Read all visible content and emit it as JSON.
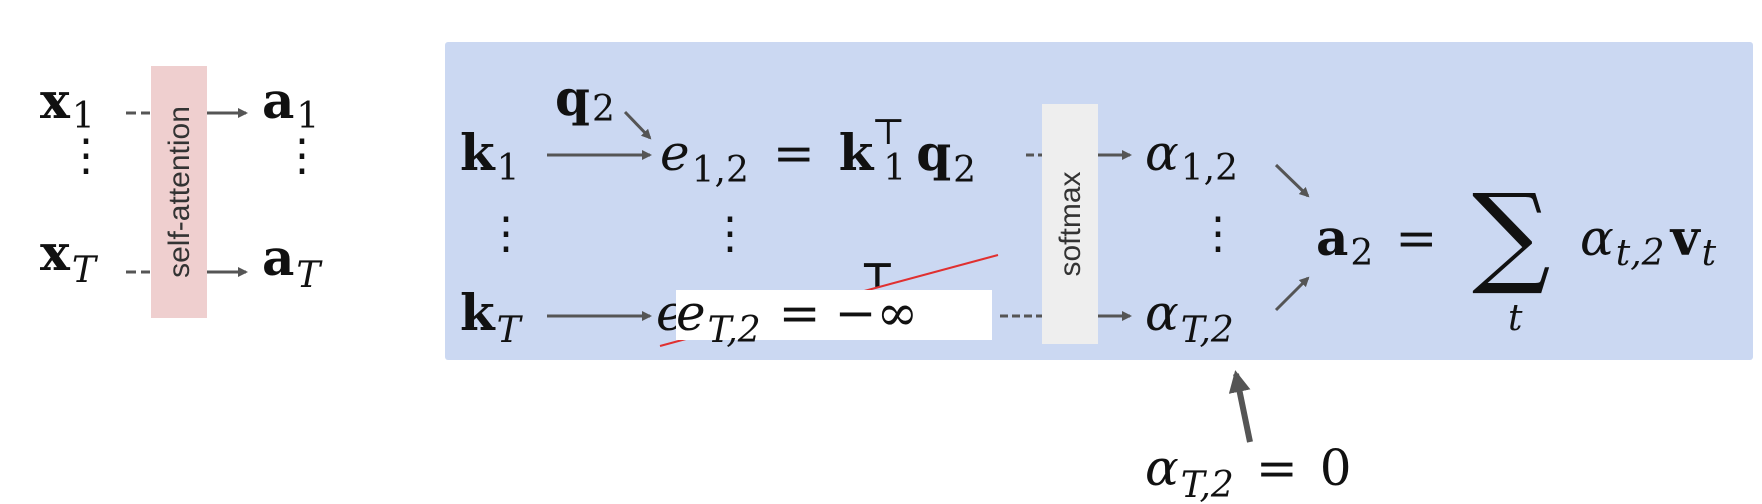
{
  "diagram": {
    "left": {
      "x1": "x",
      "x1_sub": "1",
      "xT": "x",
      "xT_sub": "T",
      "a1": "a",
      "a1_sub": "1",
      "aT": "a",
      "aT_sub": "T",
      "block_label": "self-attention",
      "block_color": "#efcfcf"
    },
    "panel": {
      "background": "#cbd8f2",
      "k1": "k",
      "k1_sub": "1",
      "kT": "k",
      "kT_sub": "T",
      "q2": "q",
      "q2_sub": "2",
      "e12": "e",
      "e12_sub": "1,2",
      "equals": "=",
      "eq1_rhs_k": "k",
      "eq1_rhs_k_sub": "1",
      "eq1_rhs_sup": "⊤",
      "eq1_rhs_q": "q",
      "eq1_rhs_q_sub": "2",
      "masked_e": "e",
      "masked_e_sub": "T,2",
      "masked_value": "−∞",
      "softmax_label": "softmax",
      "softmax_color": "#eeeeee",
      "alpha12": "α",
      "alpha12_sub": "1,2",
      "alphaT2": "α",
      "alphaT2_sub": "T,2",
      "out_a": "a",
      "out_a_sub": "2",
      "sum": "∑",
      "sum_index": "t",
      "term_alpha": "α",
      "term_alpha_sub": "t,2",
      "term_v": "v",
      "term_v_sub": "t"
    },
    "annotation": {
      "alpha": "α",
      "alpha_sub": "T,2",
      "value": "0"
    },
    "colors": {
      "arrow": "#555555",
      "strike": "#e03030"
    }
  }
}
